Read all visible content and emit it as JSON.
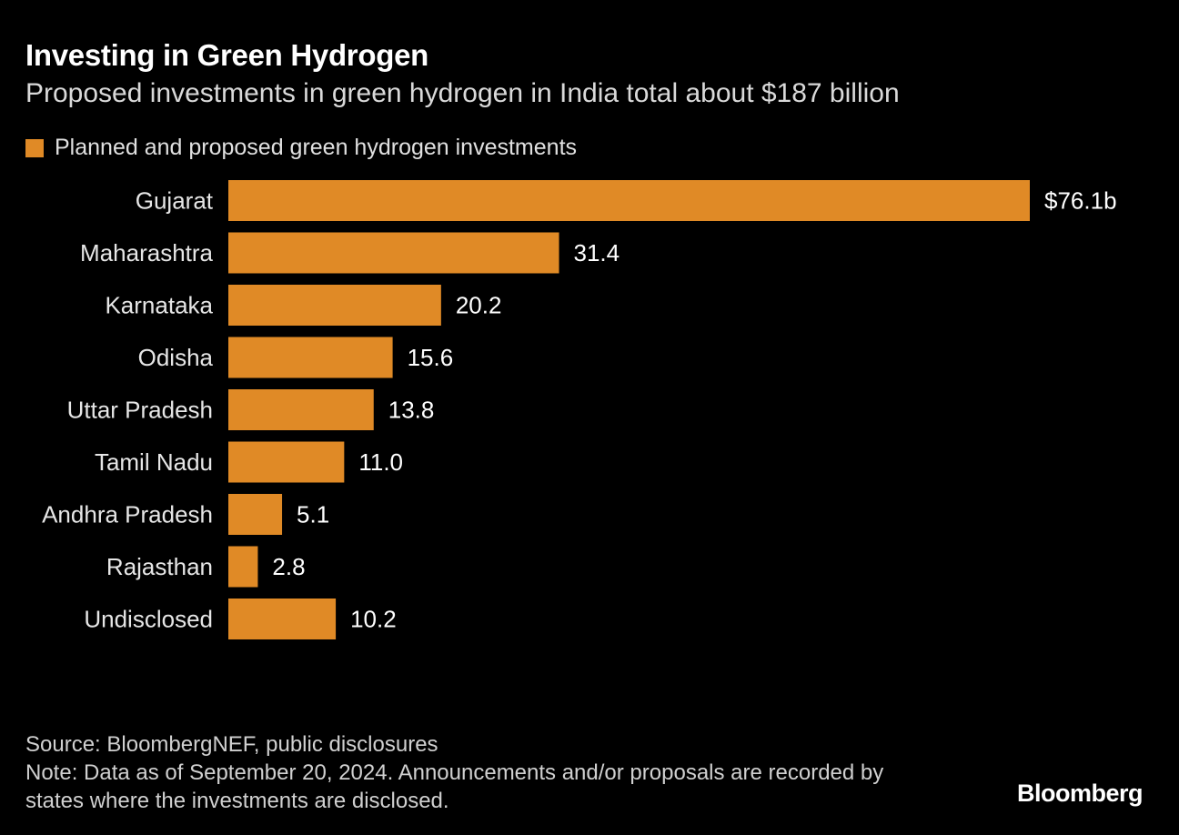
{
  "header": {
    "title": "Investing in Green Hydrogen",
    "subtitle": "Proposed investments in green hydrogen in India total about $187 billion"
  },
  "legend": {
    "label": "Planned and proposed green hydrogen investments",
    "color": "#E08A26"
  },
  "chart_data": {
    "type": "bar",
    "orientation": "horizontal",
    "title": "Investing in Green Hydrogen",
    "subtitle": "Proposed investments in green hydrogen in India total about $187 billion",
    "xlabel": "",
    "ylabel": "",
    "unit": "billion USD",
    "xlim": [
      0,
      76.1
    ],
    "grid": false,
    "legend_position": "top-left",
    "series": [
      {
        "name": "Planned and proposed green hydrogen investments",
        "color": "#E08A26",
        "values": [
          76.1,
          31.4,
          20.2,
          15.6,
          13.8,
          11.0,
          5.1,
          2.8,
          10.2
        ]
      }
    ],
    "categories": [
      "Gujarat",
      "Maharashtra",
      "Karnataka",
      "Odisha",
      "Uttar Pradesh",
      "Tamil Nadu",
      "Andhra Pradesh",
      "Rajasthan",
      "Undisclosed"
    ],
    "values": [
      76.1,
      31.4,
      20.2,
      15.6,
      13.8,
      11.0,
      5.1,
      2.8,
      10.2
    ],
    "data_labels": [
      "$76.1b",
      "31.4",
      "20.2",
      "15.6",
      "13.8",
      "11.0",
      "5.1",
      "2.8",
      "10.2"
    ]
  },
  "footer": {
    "source": "Source: BloombergNEF, public disclosures",
    "note": "Note: Data as of September 20, 2024. Announcements and/or proposals are recorded by states where the investments are disclosed.",
    "brand": "Bloomberg"
  }
}
